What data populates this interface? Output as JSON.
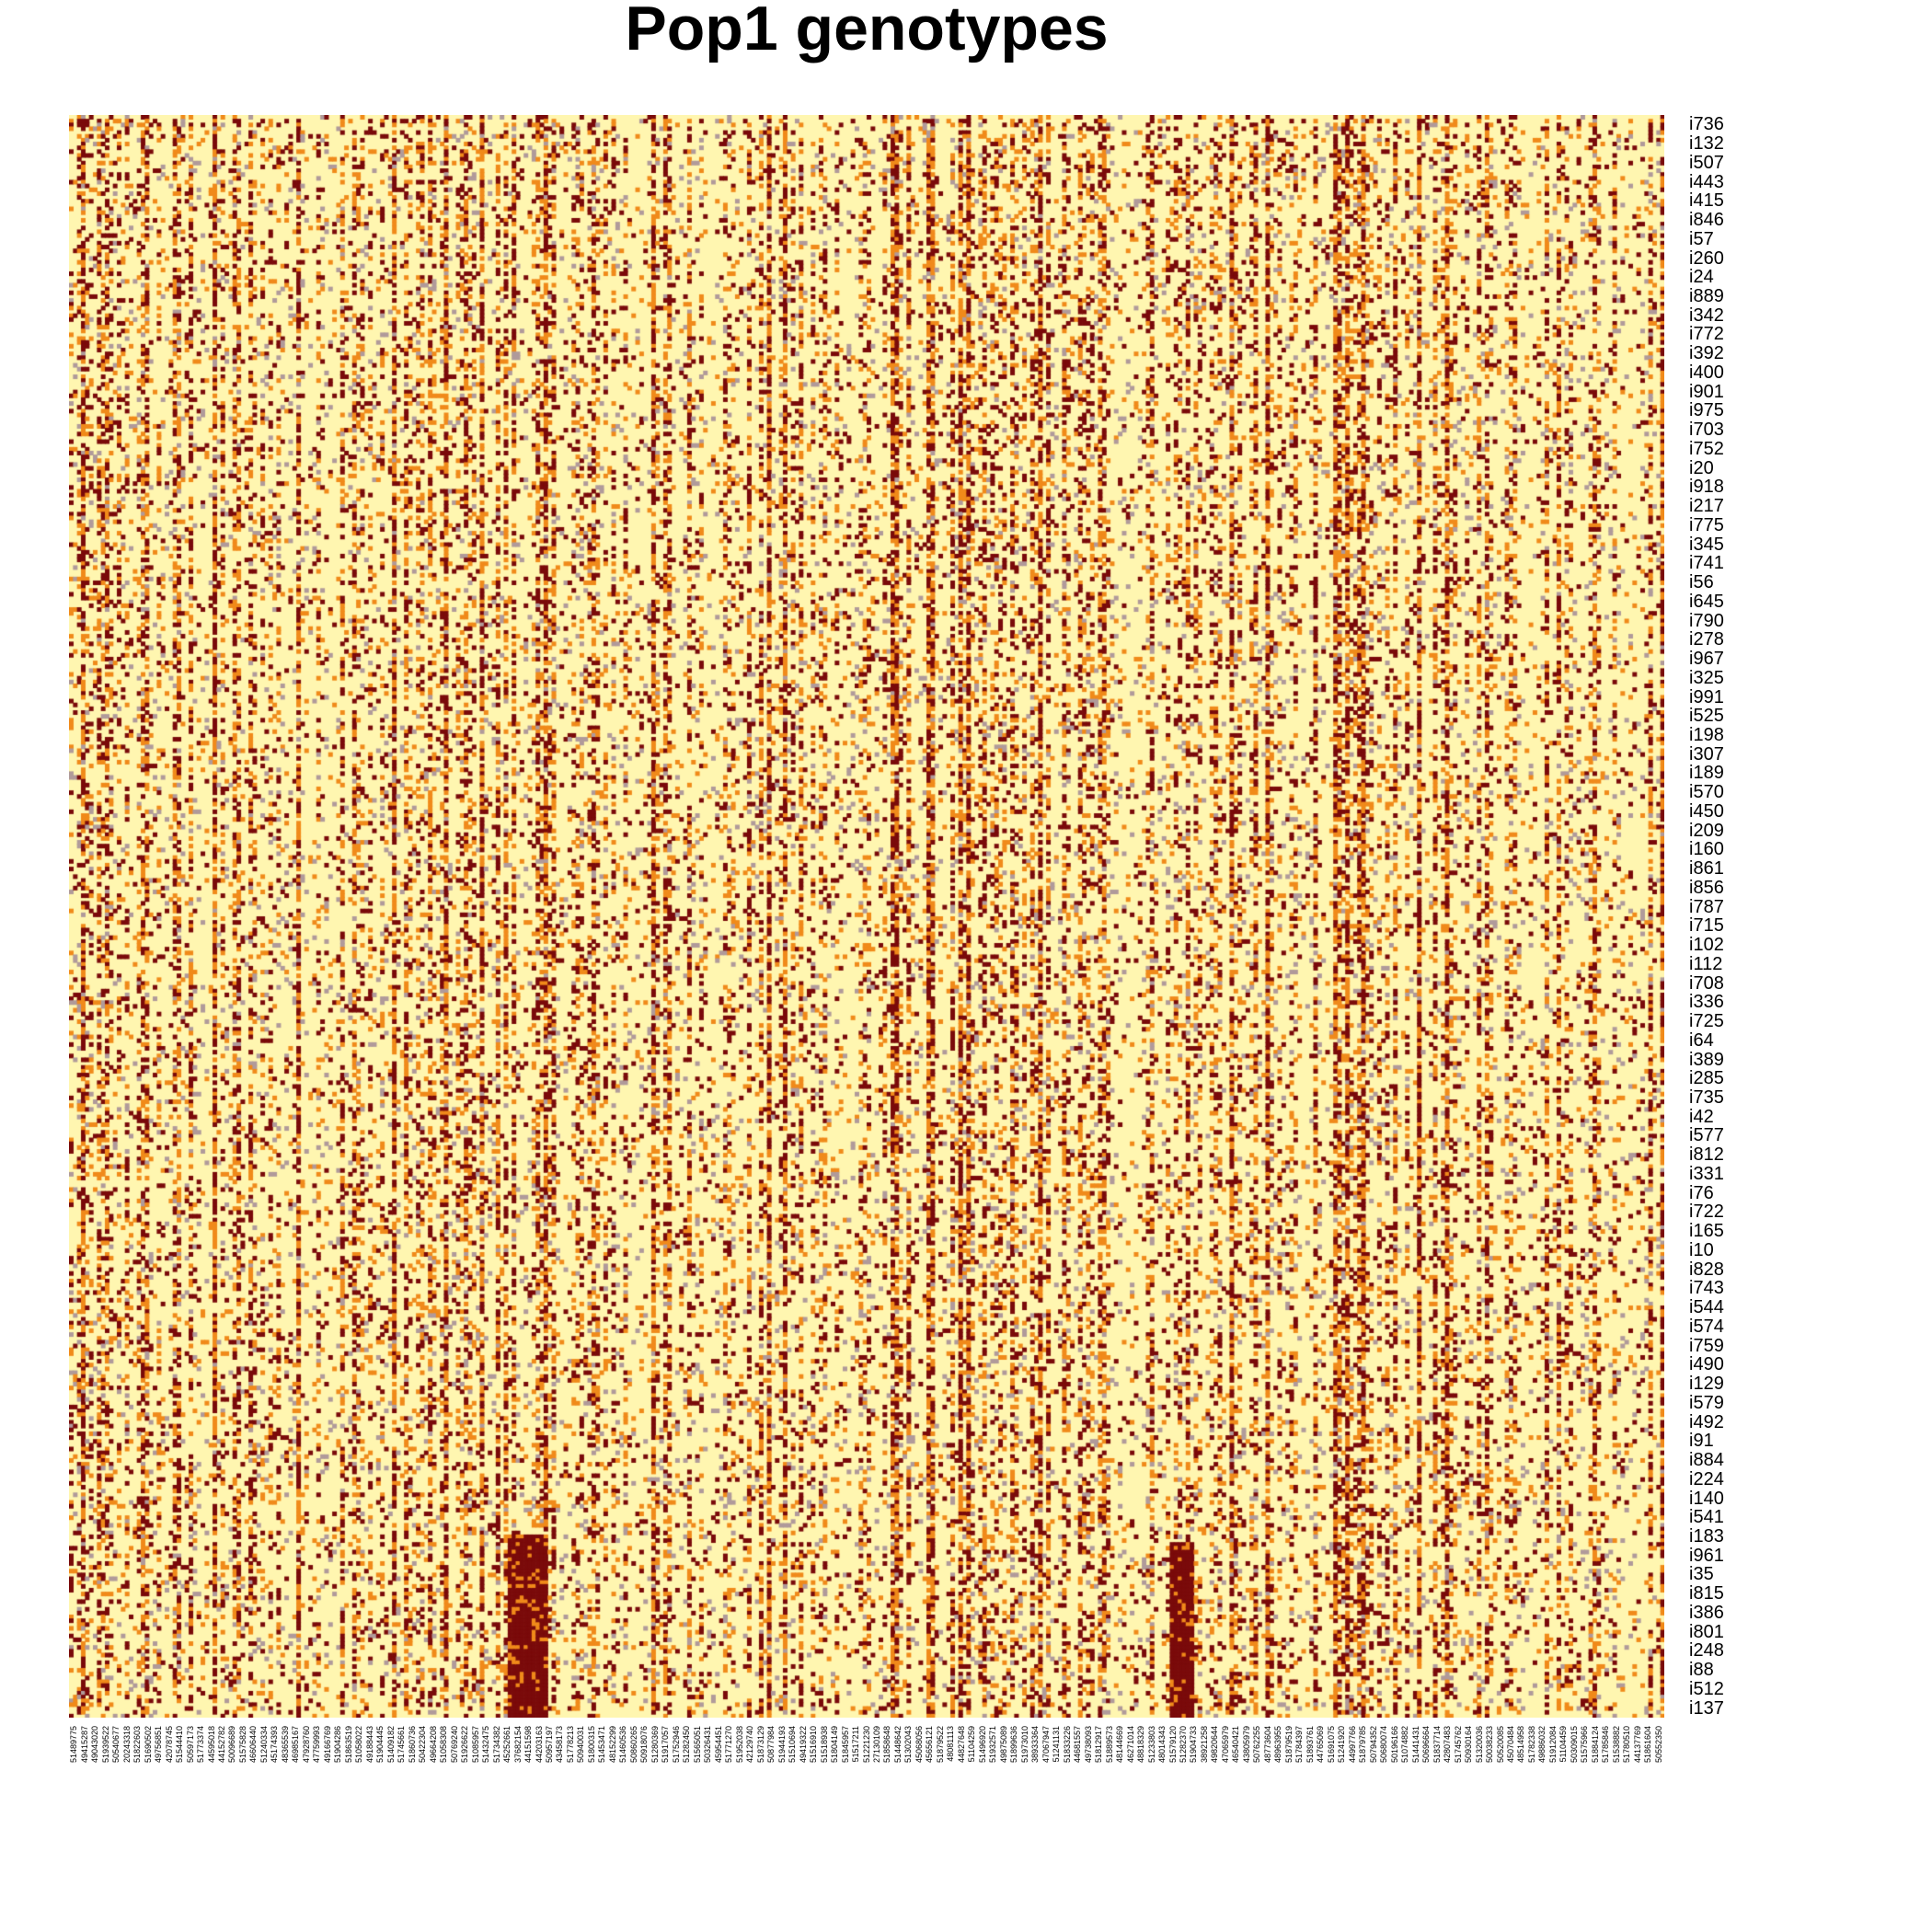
{
  "chart_data": {
    "type": "heatmap",
    "title": "Pop1 genotypes",
    "xlabel": "",
    "ylabel": "",
    "grid": false,
    "legend": "none",
    "value_levels": [
      0,
      1,
      2
    ],
    "colors": {
      "0": "#FFF6B0",
      "1": "#F08A1A",
      "2": "#7A0A0A",
      "missing": "#B09A9A"
    },
    "row_labels": [
      "i736",
      "i132",
      "i507",
      "i443",
      "i415",
      "i846",
      "i57",
      "i260",
      "i24",
      "i889",
      "i342",
      "i772",
      "i392",
      "i400",
      "i901",
      "i975",
      "i703",
      "i752",
      "i20",
      "i918",
      "i217",
      "i775",
      "i345",
      "i741",
      "i56",
      "i645",
      "i790",
      "i278",
      "i967",
      "i325",
      "i991",
      "i525",
      "i198",
      "i307",
      "i189",
      "i570",
      "i450",
      "i209",
      "i160",
      "i861",
      "i856",
      "i787",
      "i715",
      "i102",
      "i112",
      "i708",
      "i336",
      "i725",
      "i64",
      "i389",
      "i285",
      "i735",
      "i42",
      "i577",
      "i812",
      "i331",
      "i76",
      "i722",
      "i165",
      "i10",
      "i828",
      "i743",
      "i544",
      "i574",
      "i759",
      "i490",
      "i129",
      "i579",
      "i492",
      "i91",
      "i884",
      "i224",
      "i140",
      "i541",
      "i183",
      "i961",
      "i35",
      "i815",
      "i386",
      "i801",
      "i248",
      "i88",
      "i512",
      "i137"
    ],
    "col_labels": [
      "51489775",
      "49415287",
      "49043020",
      "51939522",
      "50540677",
      "20243318",
      "51822603",
      "51690502",
      "49756851",
      "42078745",
      "51544410",
      "50597173",
      "51773374",
      "44595018",
      "44152782",
      "50096689",
      "51575828",
      "46606440",
      "51240334",
      "45174393",
      "48365539",
      "46985167",
      "47928760",
      "47759993",
      "49166769",
      "51904286",
      "51863519",
      "51058022",
      "49188443",
      "51904445",
      "51409182",
      "51745661",
      "51860736",
      "50422304",
      "49664208",
      "51058308",
      "50769240",
      "51926622",
      "51085957",
      "51432475",
      "51734382",
      "45252661",
      "37682154",
      "44151598",
      "44203163",
      "50957197",
      "43458173",
      "51778213",
      "50940031",
      "51800315",
      "51453471",
      "48152299",
      "51460536",
      "50860265",
      "50918076",
      "51280369",
      "51917057",
      "51752946",
      "51282450",
      "51565051",
      "50326431",
      "45954451",
      "51771270",
      "51952038",
      "42129740",
      "51873129",
      "50877984",
      "51944193",
      "51510694",
      "49419322",
      "51516910",
      "51518938",
      "51804149",
      "51845957",
      "51517211",
      "51221230",
      "27130109",
      "51858648",
      "51448642",
      "51302043",
      "45068056",
      "45656121",
      "51879522",
      "48081113",
      "44827648",
      "51104259",
      "51496920",
      "51932571",
      "49875089",
      "51899636",
      "51973010",
      "38933364",
      "47067947",
      "51241131",
      "51833226",
      "44681557",
      "49738093",
      "51812917",
      "51889573",
      "48144669",
      "46271014",
      "48818329",
      "51233803",
      "48014343",
      "51579120",
      "51282370",
      "51904733",
      "38921258",
      "49820644",
      "47065979",
      "46540421",
      "43805979",
      "50762255",
      "48773604",
      "48963955",
      "51879519",
      "51784397",
      "51893761",
      "44765069",
      "51691075",
      "51241920",
      "44997766",
      "51879785",
      "50794352",
      "50680074",
      "50196166",
      "51074882",
      "51441431",
      "50696664",
      "51837714",
      "42807483",
      "51745762",
      "50930164",
      "51320036",
      "50038233",
      "50520085",
      "45070484",
      "48514958",
      "51782338",
      "49886032",
      "51912084",
      "51104459",
      "50309015",
      "51575966",
      "51884124",
      "51785846",
      "51538882",
      "51780510",
      "44137769",
      "51861604",
      "50552350"
    ]
  }
}
